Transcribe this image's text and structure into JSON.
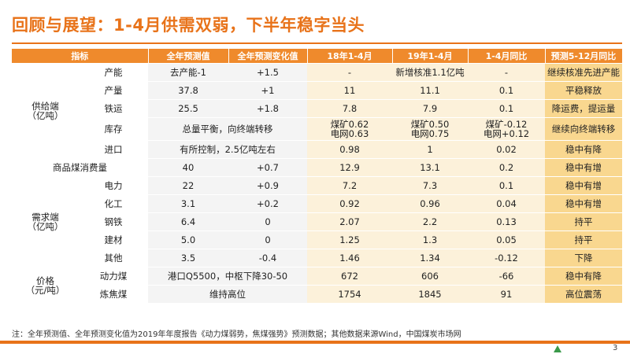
{
  "title": "回顾与展望：1-4月供需双弱，下半年稳字当头",
  "headers": [
    "指标",
    "全年预测值",
    "全年预测变化值",
    "18年1-4月",
    "19年1-4月",
    "1-4月同比",
    "预测5-12月同比"
  ],
  "categories": {
    "supply": [
      "供给端",
      "（亿吨）"
    ],
    "demand": [
      "需求端",
      "（亿吨）"
    ],
    "price": [
      "价格",
      "（元/吨）"
    ]
  },
  "rows": [
    {
      "item": "产能",
      "forecast": "去产能-1",
      "change": "+1.5",
      "y18": "-",
      "y19": "新增核准1.1亿吨",
      "yoy": "-",
      "pred": "继续核准先进产能"
    },
    {
      "item": "产量",
      "forecast": "37.8",
      "change": "+1",
      "y18": "11",
      "y19": "11.1",
      "yoy": "0.1",
      "pred": "平稳释放"
    },
    {
      "item": "铁运",
      "forecast": "25.5",
      "change": "+1.8",
      "y18": "7.8",
      "y19": "7.9",
      "yoy": "0.1",
      "pred": "降运费，提运量"
    },
    {
      "item": "库存",
      "merged": "总量平衡，向终端转移",
      "y18": [
        "煤矿0.62",
        "电网0.63"
      ],
      "y19": [
        "煤矿0.50",
        "电网0.75"
      ],
      "yoy": [
        "煤矿-0.12",
        "电网+0.12"
      ],
      "pred": "继续向终端转移"
    },
    {
      "item": "进口",
      "merged": "有所控制，2.5亿吨左右",
      "y18": "0.98",
      "y19": "1",
      "yoy": "0.02",
      "pred": "稳中有降"
    },
    {
      "item": "商品煤消费量",
      "forecast": "40",
      "change": "+0.7",
      "y18": "12.9",
      "y19": "13.1",
      "yoy": "0.2",
      "pred": "稳中有增"
    },
    {
      "item": "电力",
      "forecast": "22",
      "change": "+0.9",
      "y18": "7.2",
      "y19": "7.3",
      "yoy": "0.1",
      "pred": "稳中有增"
    },
    {
      "item": "化工",
      "forecast": "3.1",
      "change": "+0.2",
      "y18": "0.92",
      "y19": "0.96",
      "yoy": "0.04",
      "pred": "稳中有增"
    },
    {
      "item": "钢铁",
      "forecast": "6.4",
      "change": "0",
      "y18": "2.07",
      "y19": "2.2",
      "yoy": "0.13",
      "pred": "持平"
    },
    {
      "item": "建材",
      "forecast": "5.0",
      "change": "0",
      "y18": "1.25",
      "y19": "1.3",
      "yoy": "0.05",
      "pred": "持平"
    },
    {
      "item": "其他",
      "forecast": "3.5",
      "change": "-0.4",
      "y18": "1.46",
      "y19": "1.34",
      "yoy": "-0.12",
      "pred": "下降"
    },
    {
      "item": "动力煤",
      "merged": "港口Q5500，中枢下降30-50",
      "y18": "672",
      "y19": "606",
      "yoy": "-66",
      "pred": "稳中有降"
    },
    {
      "item": "炼焦煤",
      "merged": "维持高位",
      "y18": "1754",
      "y19": "1845",
      "yoy": "91",
      "pred": "高位震荡"
    }
  ],
  "note": "注：全年预测值、全年预测变化值为2019年年度报告《动力煤弱势，焦煤强势》预测数据；其他数据来源Wind，中国煤炭市场网",
  "watermark": "www.baogao8.com",
  "page_number": "3",
  "colors": {
    "accent": "#e8731a",
    "header_bg": "#ef8a2c",
    "hist_bg": "#fcf1da",
    "pred_bg": "#f9d78f",
    "base_bg": "#f4f4f4"
  }
}
